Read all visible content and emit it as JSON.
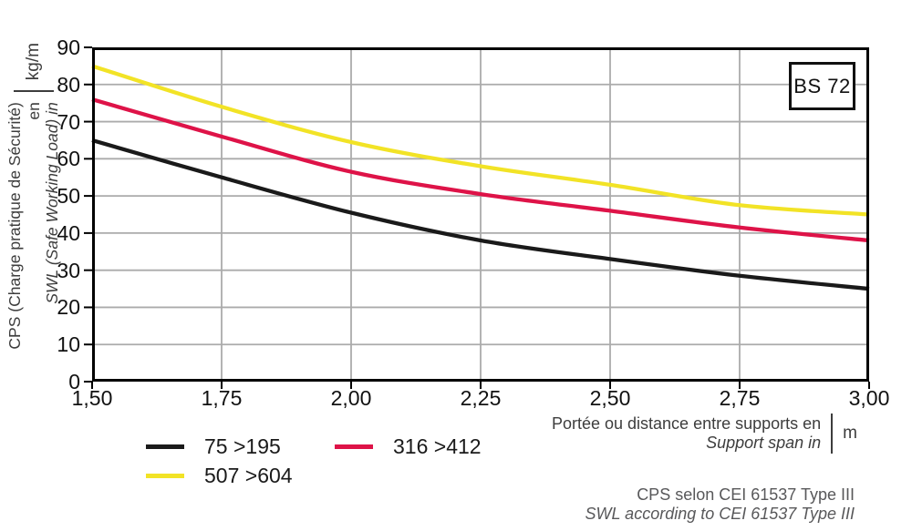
{
  "chart_data": {
    "type": "line",
    "title": "",
    "x": [
      1.5,
      1.75,
      2.0,
      2.25,
      2.5,
      2.75,
      3.0
    ],
    "x_tick_labels": [
      "1,50",
      "1,75",
      "2,00",
      "2,25",
      "2,50",
      "2,75",
      "3,00"
    ],
    "xlim": [
      1.5,
      3.0
    ],
    "y_ticks": [
      0,
      10,
      20,
      30,
      40,
      50,
      60,
      70,
      80,
      90
    ],
    "ylim": [
      0,
      90
    ],
    "grid": true,
    "legend_position": "bottom-left",
    "series": [
      {
        "name": "75 >195",
        "color": "#1a1a1a",
        "values": [
          65,
          55,
          45.5,
          38,
          33,
          28.5,
          25
        ]
      },
      {
        "name": "316 >412",
        "color": "#de1348",
        "values": [
          76,
          66,
          56.5,
          50.5,
          46,
          41.5,
          38
        ]
      },
      {
        "name": "507 >604",
        "color": "#f2e326",
        "values": [
          85,
          74,
          64.5,
          58,
          53,
          47.5,
          45
        ]
      }
    ],
    "ylabel_fr": "CPS (Charge pratique de Sécurité) en",
    "ylabel_en": "SWL (Safe Working Load) in",
    "y_unit": "kg/m",
    "xlabel_fr": "Portée ou distance entre supports en",
    "xlabel_en": "Support span in",
    "x_unit": "m"
  },
  "badge": {
    "label": "BS 72"
  },
  "footnote": {
    "line_fr": "CPS selon CEI 61537 Type III",
    "line_en": "SWL according to CEI 61537 Type III"
  },
  "colors": {
    "grid": "#ababab",
    "axis": "#000000",
    "tick_text": "#111111",
    "axis_title_text": "#3d3d3d",
    "footnote_text": "#58585a"
  }
}
